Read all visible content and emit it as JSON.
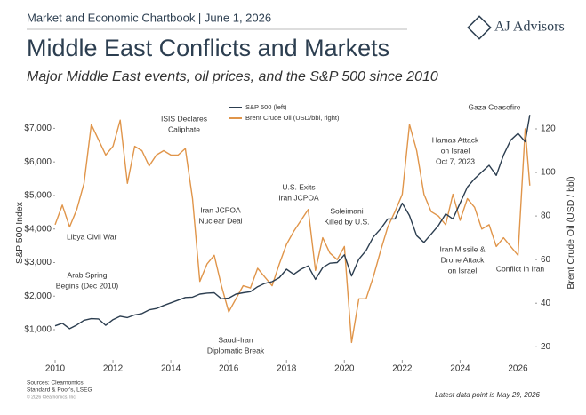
{
  "header": "Market and Economic Chartbook | June 1, 2026",
  "brand": "AJ Advisors",
  "chart_data": {
    "type": "line",
    "title": "Middle East Conflicts and Markets",
    "subtitle": "Major Middle East events, oil prices, and the S&P 500 since 2010",
    "y_label": "S&P 500 Index",
    "y2_label": "Brent Crude Oil (USD / bbl)",
    "x": [
      2010,
      2010.25,
      2010.5,
      2010.75,
      2011,
      2011.25,
      2011.5,
      2011.75,
      2012,
      2012.25,
      2012.5,
      2012.75,
      2013,
      2013.25,
      2013.5,
      2013.75,
      2014,
      2014.25,
      2014.5,
      2014.75,
      2015,
      2015.25,
      2015.5,
      2015.75,
      2016,
      2016.25,
      2016.5,
      2016.75,
      2017,
      2017.25,
      2017.5,
      2017.75,
      2018,
      2018.25,
      2018.5,
      2018.75,
      2019,
      2019.25,
      2019.5,
      2019.75,
      2020,
      2020.25,
      2020.5,
      2020.75,
      2021,
      2021.25,
      2021.5,
      2021.75,
      2022,
      2022.25,
      2022.5,
      2022.75,
      2023,
      2023.25,
      2023.5,
      2023.75,
      2024,
      2024.25,
      2024.5,
      2024.75,
      2025,
      2025.25,
      2025.5,
      2025.75,
      2026,
      2026.25,
      2026.41
    ],
    "series": [
      {
        "name": "S&P 500 (left)",
        "color": "#2c3e50",
        "axis": "y",
        "values": [
          1115,
          1190,
          1030,
          1140,
          1280,
          1330,
          1320,
          1130,
          1300,
          1400,
          1360,
          1440,
          1480,
          1590,
          1630,
          1720,
          1800,
          1880,
          1960,
          1970,
          2060,
          2090,
          2100,
          1920,
          1940,
          2060,
          2100,
          2130,
          2280,
          2380,
          2430,
          2550,
          2800,
          2650,
          2800,
          2900,
          2500,
          2850,
          2980,
          3000,
          3230,
          2600,
          3100,
          3360,
          3760,
          4000,
          4300,
          4300,
          4770,
          4400,
          3800,
          3600,
          3850,
          4100,
          4450,
          4300,
          4770,
          5250,
          5500,
          5700,
          5900,
          5600,
          6200,
          6650,
          6850,
          6600,
          7400
        ]
      },
      {
        "name": "Brent Crude Oil (USD/bbl, right)",
        "color": "#e0954a",
        "axis": "y2",
        "values": [
          76,
          85,
          75,
          83,
          95,
          122,
          115,
          108,
          112,
          124,
          95,
          112,
          110,
          103,
          108,
          110,
          108,
          108,
          111,
          88,
          50,
          58,
          62,
          48,
          36,
          42,
          48,
          47,
          56,
          52,
          48,
          58,
          67,
          73,
          78,
          83,
          55,
          70,
          63,
          60,
          66,
          22,
          42,
          42,
          52,
          64,
          75,
          82,
          90,
          122,
          110,
          90,
          82,
          80,
          76,
          90,
          78,
          88,
          84,
          74,
          76,
          66,
          70,
          66,
          62,
          120,
          94
        ]
      }
    ],
    "xlim": [
      2010,
      2026.6
    ],
    "xticks": [
      2010,
      2012,
      2014,
      2016,
      2018,
      2020,
      2022,
      2024,
      2026
    ],
    "ylim": [
      100,
      7700
    ],
    "yticks": [
      {
        "value": 1000,
        "label": "$1,000"
      },
      {
        "value": 2000,
        "label": "$2,000"
      },
      {
        "value": 3000,
        "label": "$3,000"
      },
      {
        "value": 4000,
        "label": "$4,000"
      },
      {
        "value": 5000,
        "label": "$5,000"
      },
      {
        "value": 6000,
        "label": "$6,000"
      },
      {
        "value": 7000,
        "label": "$7,000"
      }
    ],
    "y2lim": [
      14,
      131
    ],
    "y2ticks": [
      20,
      40,
      60,
      80,
      100,
      120
    ],
    "grid": false,
    "legend": "top",
    "annotations": [
      [
        "Libya Civil War"
      ],
      [
        "Arab Spring",
        "Begins (Dec 2010)"
      ],
      [
        "ISIS Declares",
        "Caliphate"
      ],
      [
        "Iran JCPOA",
        "Nuclear Deal"
      ],
      [
        "Saudi-Iran",
        "Diplomatic Break"
      ],
      [
        "U.S. Exits",
        "Iran JCPOA"
      ],
      [
        "Soleimani",
        "Killed by U.S."
      ],
      [
        "Gaza Ceasefire"
      ],
      [
        "Hamas Attack",
        "on Israel",
        "Oct 7, 2023"
      ],
      [
        "Iran Missile &",
        "Drone Attack",
        "on Israel"
      ],
      [
        "Conflict in Iran"
      ]
    ]
  },
  "sources": [
    "Sources: Clearnomics,",
    "Standard & Poor's, LSEG"
  ],
  "copyright": "© 2026 Clearnomics, Inc.",
  "footnote": "Latest data point is May 29, 2026"
}
